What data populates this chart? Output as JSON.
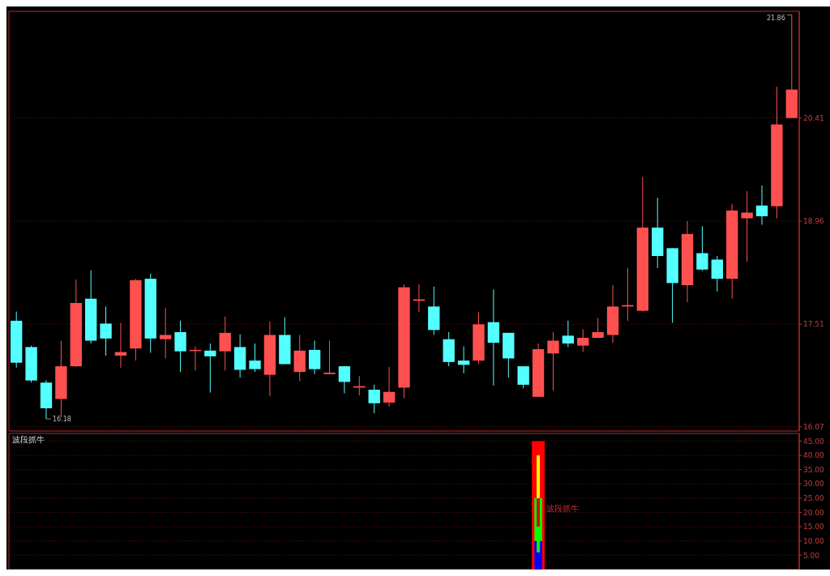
{
  "chart_data": [
    {
      "type": "candlestick",
      "categories": [
        null,
        null,
        null,
        null,
        null,
        null,
        null,
        null,
        null,
        null,
        null,
        null,
        null,
        null,
        null,
        null,
        null,
        null,
        null,
        null,
        null,
        null,
        null,
        null,
        null,
        null,
        null,
        null,
        null,
        null,
        null,
        null,
        null,
        null,
        null,
        null,
        null,
        null,
        null,
        null,
        null,
        null,
        null,
        null,
        null,
        null,
        null,
        null,
        null,
        null,
        null,
        null,
        null
      ],
      "ohlc": [
        [
          17.56,
          17.69,
          16.9,
          16.97
        ],
        [
          17.19,
          17.21,
          16.69,
          16.72
        ],
        [
          16.69,
          16.72,
          16.18,
          16.33
        ],
        [
          16.46,
          17.28,
          16.2,
          16.92
        ],
        [
          16.92,
          18.14,
          16.91,
          17.81
        ],
        [
          17.87,
          18.27,
          17.24,
          17.28
        ],
        [
          17.52,
          17.76,
          17.07,
          17.31
        ],
        [
          17.07,
          17.53,
          16.9,
          17.12
        ],
        [
          17.17,
          18.15,
          17.0,
          18.13
        ],
        [
          18.15,
          18.22,
          17.11,
          17.31
        ],
        [
          17.3,
          17.74,
          17.03,
          17.36
        ],
        [
          17.4,
          17.56,
          16.84,
          17.13
        ],
        [
          17.14,
          17.2,
          16.86,
          17.15
        ],
        [
          17.14,
          17.24,
          16.55,
          17.06
        ],
        [
          17.13,
          17.62,
          16.86,
          17.39
        ],
        [
          17.19,
          17.37,
          16.76,
          16.87
        ],
        [
          17.0,
          17.24,
          16.84,
          16.88
        ],
        [
          16.8,
          17.55,
          16.5,
          17.36
        ],
        [
          17.36,
          17.61,
          16.95,
          16.95
        ],
        [
          16.84,
          17.36,
          16.71,
          17.14
        ],
        [
          17.15,
          17.28,
          16.81,
          16.88
        ],
        [
          16.81,
          17.28,
          16.81,
          16.83
        ],
        [
          16.92,
          16.92,
          16.54,
          16.7
        ],
        [
          16.62,
          16.78,
          16.51,
          16.64
        ],
        [
          16.59,
          16.66,
          16.26,
          16.4
        ],
        [
          16.41,
          16.91,
          16.35,
          16.56
        ],
        [
          16.62,
          18.07,
          16.47,
          18.03
        ],
        [
          17.84,
          18.07,
          17.68,
          17.86
        ],
        [
          17.76,
          18.04,
          17.36,
          17.43
        ],
        [
          17.3,
          17.4,
          16.92,
          16.98
        ],
        [
          17.0,
          17.2,
          16.82,
          16.94
        ],
        [
          17.0,
          17.68,
          16.95,
          17.51
        ],
        [
          17.54,
          18.0,
          16.65,
          17.25
        ],
        [
          17.39,
          17.39,
          16.76,
          17.03
        ],
        [
          16.92,
          16.92,
          16.61,
          16.66
        ],
        [
          16.49,
          17.24,
          16.49,
          17.16
        ],
        [
          17.1,
          17.4,
          16.58,
          17.28
        ],
        [
          17.35,
          17.56,
          17.19,
          17.24
        ],
        [
          17.21,
          17.44,
          17.12,
          17.32
        ],
        [
          17.32,
          17.6,
          17.32,
          17.4
        ],
        [
          17.36,
          18.06,
          17.25,
          17.76
        ],
        [
          17.76,
          18.3,
          17.56,
          17.78
        ],
        [
          17.7,
          19.58,
          17.69,
          18.87
        ],
        [
          18.87,
          19.29,
          18.3,
          18.47
        ],
        [
          18.58,
          18.58,
          17.53,
          18.09
        ],
        [
          18.06,
          18.96,
          17.82,
          18.78
        ],
        [
          18.51,
          18.89,
          18.26,
          18.28
        ],
        [
          18.42,
          18.47,
          17.97,
          18.15
        ],
        [
          18.15,
          19.2,
          17.87,
          19.11
        ],
        [
          19.0,
          19.38,
          18.39,
          19.08
        ],
        [
          19.18,
          19.46,
          18.91,
          19.03
        ],
        [
          19.17,
          20.85,
          19.0,
          20.32
        ],
        [
          20.41,
          21.86,
          20.41,
          20.81
        ]
      ],
      "colors": [
        "#54ffff",
        "#54ffff",
        "#54ffff",
        "#ff5050",
        "#ff5050",
        "#54ffff",
        "#54ffff",
        "#ff5050",
        "#ff5050",
        "#54ffff",
        "#ff5050",
        "#54ffff",
        "#ff5050",
        "#54ffff",
        "#ff5050",
        "#54ffff",
        "#54ffff",
        "#ff5050",
        "#54ffff",
        "#ff5050",
        "#54ffff",
        "#ff5050",
        "#54ffff",
        "#ff5050",
        "#54ffff",
        "#ff5050",
        "#ff5050",
        "#ff5050",
        "#54ffff",
        "#54ffff",
        "#54ffff",
        "#ff5050",
        "#54ffff",
        "#54ffff",
        "#54ffff",
        "#ff5050",
        "#ff5050",
        "#54ffff",
        "#ff5050",
        "#ff5050",
        "#ff5050",
        "#ff5050",
        "#ff5050",
        "#54ffff",
        "#54ffff",
        "#ff5050",
        "#54ffff",
        "#54ffff",
        "#ff5050",
        "#ff5050",
        "#54ffff",
        "#ff5050",
        "#ff5050"
      ],
      "ylim": [
        16.01,
        21.91
      ],
      "yticks": [
        16.07,
        17.51,
        18.96,
        20.41
      ],
      "grid": "y",
      "annotations": [
        "21.86",
        "16.18"
      ]
    },
    {
      "type": "bar",
      "title": "波段抓牛",
      "categories": [
        null,
        null,
        null,
        null,
        null,
        null,
        null,
        null,
        null,
        null,
        null,
        null,
        null,
        null,
        null,
        null,
        null,
        null,
        null,
        null,
        null,
        null,
        null,
        null,
        null,
        null,
        null,
        null,
        null,
        null,
        null,
        null,
        null,
        null,
        null,
        null,
        null,
        null,
        null,
        null,
        null,
        null,
        null,
        null,
        null,
        null,
        null,
        null,
        null,
        null,
        null,
        null,
        null
      ],
      "series": [
        {
          "color": "#ff0000",
          "base": [
            null,
            null,
            null,
            null,
            null,
            null,
            null,
            null,
            null,
            null,
            null,
            null,
            null,
            null,
            null,
            null,
            null,
            null,
            null,
            null,
            null,
            null,
            null,
            null,
            null,
            null,
            null,
            null,
            null,
            null,
            null,
            null,
            null,
            null,
            null,
            0,
            null,
            null,
            null,
            null,
            null,
            null,
            null,
            null,
            null,
            null,
            null,
            null,
            null,
            null,
            null,
            null,
            null
          ],
          "values": [
            null,
            null,
            null,
            null,
            null,
            null,
            null,
            null,
            null,
            null,
            null,
            null,
            null,
            null,
            null,
            null,
            null,
            null,
            null,
            null,
            null,
            null,
            null,
            null,
            null,
            null,
            null,
            null,
            null,
            null,
            null,
            null,
            null,
            null,
            null,
            45,
            null,
            null,
            null,
            null,
            null,
            null,
            null,
            null,
            null,
            null,
            null,
            null,
            null,
            null,
            null,
            null,
            null
          ]
        },
        {
          "color": "#0000ff",
          "base": [
            null,
            null,
            null,
            null,
            null,
            null,
            null,
            null,
            null,
            null,
            null,
            null,
            null,
            null,
            null,
            null,
            null,
            null,
            null,
            null,
            null,
            null,
            null,
            null,
            null,
            null,
            null,
            null,
            null,
            null,
            null,
            null,
            null,
            null,
            null,
            0,
            null,
            null,
            null,
            null,
            null,
            null,
            null,
            null,
            null,
            null,
            null,
            null,
            null,
            null,
            null,
            null,
            null
          ],
          "values": [
            null,
            null,
            null,
            null,
            null,
            null,
            null,
            null,
            null,
            null,
            null,
            null,
            null,
            null,
            null,
            null,
            null,
            null,
            null,
            null,
            null,
            null,
            null,
            null,
            null,
            null,
            null,
            null,
            null,
            null,
            null,
            null,
            null,
            null,
            null,
            10,
            null,
            null,
            null,
            null,
            null,
            null,
            null,
            null,
            null,
            null,
            null,
            null,
            null,
            null,
            null,
            null,
            null
          ]
        },
        {
          "color": "#00ff00",
          "base": [
            null,
            null,
            null,
            null,
            null,
            null,
            null,
            null,
            null,
            null,
            null,
            null,
            null,
            null,
            null,
            null,
            null,
            null,
            null,
            null,
            null,
            null,
            null,
            null,
            null,
            null,
            null,
            null,
            null,
            null,
            null,
            null,
            null,
            null,
            null,
            10,
            null,
            null,
            null,
            null,
            null,
            null,
            null,
            null,
            null,
            null,
            null,
            null,
            null,
            null,
            null,
            null,
            null
          ],
          "values": [
            null,
            null,
            null,
            null,
            null,
            null,
            null,
            null,
            null,
            null,
            null,
            null,
            null,
            null,
            null,
            null,
            null,
            null,
            null,
            null,
            null,
            null,
            null,
            null,
            null,
            null,
            null,
            null,
            null,
            null,
            null,
            null,
            null,
            null,
            null,
            15,
            null,
            null,
            null,
            null,
            null,
            null,
            null,
            null,
            null,
            null,
            null,
            null,
            null,
            null,
            null,
            null,
            null
          ]
        },
        {
          "color": "#cc1010",
          "base": [
            null,
            null,
            null,
            null,
            null,
            null,
            null,
            null,
            null,
            null,
            null,
            null,
            null,
            null,
            null,
            null,
            null,
            null,
            null,
            null,
            null,
            null,
            null,
            null,
            null,
            null,
            null,
            null,
            null,
            null,
            null,
            null,
            null,
            null,
            null,
            15,
            null,
            null,
            null,
            null,
            null,
            null,
            null,
            null,
            null,
            null,
            null,
            null,
            null,
            null,
            null,
            null,
            null
          ],
          "values": [
            null,
            null,
            null,
            null,
            null,
            null,
            null,
            null,
            null,
            null,
            null,
            null,
            null,
            null,
            null,
            null,
            null,
            null,
            null,
            null,
            null,
            null,
            null,
            null,
            null,
            null,
            null,
            null,
            null,
            null,
            null,
            null,
            null,
            null,
            null,
            10,
            null,
            null,
            null,
            null,
            null,
            null,
            null,
            null,
            null,
            null,
            null,
            null,
            null,
            null,
            null,
            null,
            null
          ]
        },
        {
          "color": "#ffff00",
          "base": [
            null,
            null,
            null,
            null,
            null,
            null,
            null,
            null,
            null,
            null,
            null,
            null,
            null,
            null,
            null,
            null,
            null,
            null,
            null,
            null,
            null,
            null,
            null,
            null,
            null,
            null,
            null,
            null,
            null,
            null,
            null,
            null,
            null,
            null,
            null,
            25,
            null,
            null,
            null,
            null,
            null,
            null,
            null,
            null,
            null,
            null,
            null,
            null,
            null,
            null,
            null,
            null,
            null
          ],
          "values": [
            null,
            null,
            null,
            null,
            null,
            null,
            null,
            null,
            null,
            null,
            null,
            null,
            null,
            null,
            null,
            null,
            null,
            null,
            null,
            null,
            null,
            null,
            null,
            null,
            null,
            null,
            null,
            null,
            null,
            null,
            null,
            null,
            null,
            null,
            null,
            15,
            null,
            null,
            null,
            null,
            null,
            null,
            null,
            null,
            null,
            null,
            null,
            null,
            null,
            null,
            null,
            null,
            null
          ]
        },
        {
          "color": "#00ff00",
          "base": [
            null,
            null,
            null,
            null,
            null,
            null,
            null,
            null,
            null,
            null,
            null,
            null,
            null,
            null,
            null,
            null,
            null,
            null,
            null,
            null,
            null,
            null,
            null,
            null,
            null,
            null,
            null,
            null,
            null,
            null,
            null,
            null,
            null,
            null,
            null,
            6,
            null,
            null,
            null,
            null,
            null,
            null,
            null,
            null,
            null,
            null,
            null,
            null,
            null,
            null,
            null,
            null,
            null
          ],
          "values": [
            null,
            null,
            null,
            null,
            null,
            null,
            null,
            null,
            null,
            null,
            null,
            null,
            null,
            null,
            null,
            null,
            null,
            null,
            null,
            null,
            null,
            null,
            null,
            null,
            null,
            null,
            null,
            null,
            null,
            null,
            null,
            null,
            null,
            null,
            null,
            9,
            null,
            null,
            null,
            null,
            null,
            null,
            null,
            null,
            null,
            null,
            null,
            null,
            null,
            null,
            null,
            null,
            null
          ]
        }
      ],
      "ylim": [
        0,
        47.7
      ],
      "yticks": [
        {
          "value": 5,
          "label": "5.00"
        },
        {
          "value": 10,
          "label": "10.00"
        },
        {
          "value": 15,
          "label": "15.00"
        },
        {
          "value": 20,
          "label": "20.00"
        },
        {
          "value": 25,
          "label": "25.00"
        },
        {
          "value": 30,
          "label": "30.00"
        },
        {
          "value": 35,
          "label": "35.00"
        },
        {
          "value": 40,
          "label": "40.00"
        },
        {
          "value": 45,
          "label": "45.00"
        }
      ],
      "grid": "y",
      "annotations": [
        "波段抓牛"
      ]
    }
  ]
}
